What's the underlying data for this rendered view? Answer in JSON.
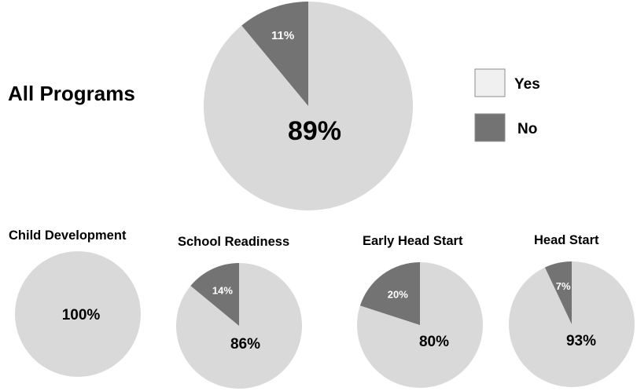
{
  "chart_data": [
    {
      "type": "pie",
      "title": "All Programs",
      "categories": [
        "Yes",
        "No"
      ],
      "values": [
        89,
        11
      ],
      "data_labels": [
        "89%",
        "11%"
      ]
    },
    {
      "type": "pie",
      "title": "Child Development",
      "categories": [
        "Yes",
        "No"
      ],
      "values": [
        100,
        0
      ],
      "data_labels": [
        "100%",
        ""
      ]
    },
    {
      "type": "pie",
      "title": "School Readiness",
      "categories": [
        "Yes",
        "No"
      ],
      "values": [
        86,
        14
      ],
      "data_labels": [
        "86%",
        "14%"
      ]
    },
    {
      "type": "pie",
      "title": "Early Head Start",
      "categories": [
        "Yes",
        "No"
      ],
      "values": [
        80,
        20
      ],
      "data_labels": [
        "80%",
        "20%"
      ]
    },
    {
      "type": "pie",
      "title": "Head Start",
      "categories": [
        "Yes",
        "No"
      ],
      "values": [
        93,
        7
      ],
      "data_labels": [
        "93%",
        "7%"
      ]
    }
  ],
  "legend": {
    "placement": "right",
    "items": [
      {
        "label": "Yes",
        "color": "#d9d9d9"
      },
      {
        "label": "No",
        "color": "#737373"
      }
    ]
  },
  "colors": {
    "yes": "#d9d9d9",
    "no": "#737373",
    "yes_legend_swatch": "#f0f0f0",
    "swatch_border": "#8c8c8c",
    "small_label": "#ffffff",
    "main_label": "#000000",
    "title_text": "#000000"
  }
}
